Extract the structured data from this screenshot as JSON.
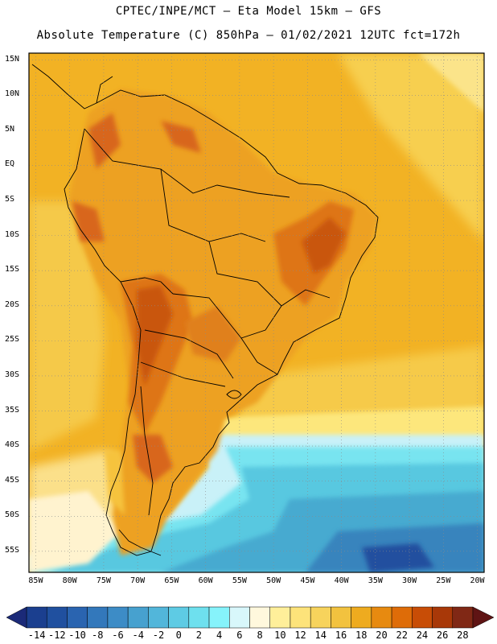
{
  "header": {
    "line1": "CPTEC/INPE/MCT –  Eta Model 15km – GFS",
    "line2": "Absolute Temperature (C) 850hPa – 01/02/2021 12UTC fct=172h"
  },
  "map": {
    "lat_labels": [
      "15N",
      "10N",
      "5N",
      "EQ",
      "5S",
      "10S",
      "15S",
      "20S",
      "25S",
      "30S",
      "35S",
      "40S",
      "45S",
      "50S",
      "55S"
    ],
    "lon_labels": [
      "85W",
      "80W",
      "75W",
      "70W",
      "65W",
      "60W",
      "55W",
      "50W",
      "45W",
      "40W",
      "35W",
      "30W",
      "25W",
      "20W"
    ],
    "extent": {
      "lon_min": -86,
      "lon_max": -19,
      "lat_min": -58,
      "lat_max": 16
    }
  },
  "colorbar": {
    "labels": [
      "-14",
      "-12",
      "-10",
      "-8",
      "-6",
      "-4",
      "-2",
      "0",
      "2",
      "4",
      "6",
      "8",
      "10",
      "12",
      "14",
      "16",
      "18",
      "20",
      "22",
      "24",
      "26",
      "28"
    ],
    "colors": [
      "#1b3f8f",
      "#20509f",
      "#2a64b0",
      "#3378bb",
      "#3d8cc6",
      "#47a1cf",
      "#52b6da",
      "#5ecbe4",
      "#6ee0ee",
      "#86f3fb",
      "#d8f7fb",
      "#fff8dd",
      "#ffef9a",
      "#fde37a",
      "#f7d35c",
      "#f2c23f",
      "#eeab1f",
      "#e78a10",
      "#de6c08",
      "#c84d06",
      "#a83808",
      "#802815"
    ]
  }
}
